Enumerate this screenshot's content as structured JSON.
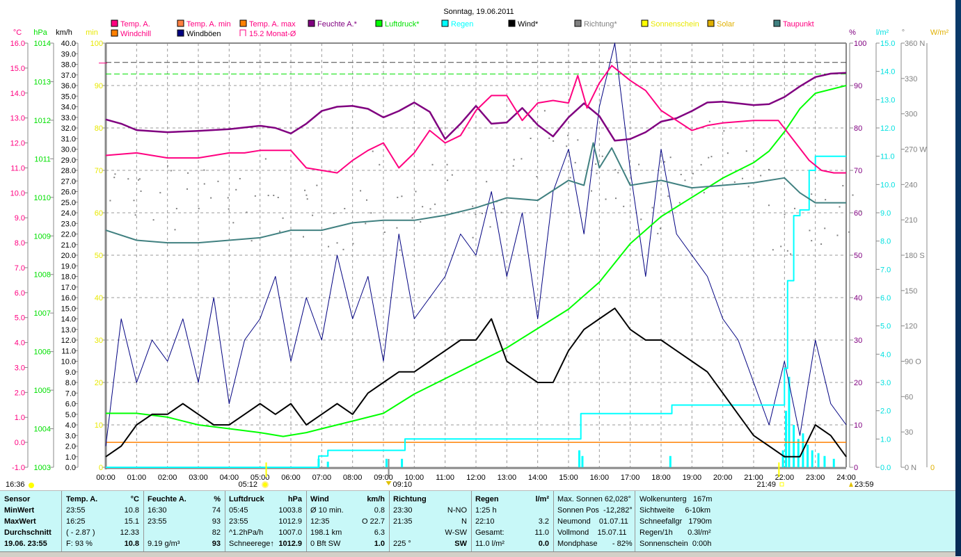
{
  "title": "Sonntag, 19.06.2011",
  "legend": [
    {
      "label": "Temp. A.",
      "color": "#ff0080",
      "text": "#ff0080",
      "box": "fill"
    },
    {
      "label": "Temp. A. min",
      "color": "#ff8040",
      "text": "#ff0080",
      "box": "fill"
    },
    {
      "label": "Temp. A. max",
      "color": "#ff8000",
      "text": "#ff0080",
      "box": "fill"
    },
    {
      "label": "Feuchte A.*",
      "color": "#800080",
      "text": "#800080",
      "box": "fill"
    },
    {
      "label": "Luftdruck*",
      "color": "#00ff00",
      "text": "#00e000",
      "box": "fill"
    },
    {
      "label": "Regen",
      "color": "#00ffff",
      "text": "#00ffff",
      "box": "fill"
    },
    {
      "label": "Wind*",
      "color": "#000000",
      "text": "#000000",
      "box": "fill"
    },
    {
      "label": "Richtung*",
      "color": "#808080",
      "text": "#808080",
      "box": "fill"
    },
    {
      "label": "Sonnenschein",
      "color": "#ffff00",
      "text": "#e8e800",
      "box": "fill"
    },
    {
      "label": "Solar",
      "color": "#e0b000",
      "text": "#e0b000",
      "box": "fill"
    },
    {
      "label": "Taupunkt",
      "color": "#408080",
      "text": "#ff0080",
      "box": "fill"
    },
    {
      "label": "Windchill",
      "color": "#ff8000",
      "text": "#ff0080",
      "box": "fill"
    },
    {
      "label": "Windböen",
      "color": "#000080",
      "text": "#000000",
      "box": "fill"
    },
    {
      "label": "15.2 Monat-Ø",
      "color": "#ff0080",
      "text": "#ff0080",
      "box": "open"
    }
  ],
  "chart_data": {
    "type": "line",
    "title": "Sonntag, 19.06.2011",
    "xlabel": "",
    "x_ticks": [
      "00:00",
      "01:00",
      "02:00",
      "03:00",
      "04:00",
      "05:00",
      "06:00",
      "07:00",
      "08:00",
      "09:00",
      "10:00",
      "11:00",
      "12:00",
      "13:00",
      "14:00",
      "15:00",
      "16:00",
      "17:00",
      "18:00",
      "19:00",
      "20:00",
      "21:00",
      "22:00",
      "23:00",
      "24:00"
    ],
    "xlim": [
      0,
      24
    ],
    "axes": {
      "temp": {
        "unit": "°C",
        "range": [
          -1,
          16
        ],
        "step": 1,
        "color": "#ff0080"
      },
      "pressure": {
        "unit": "hPa",
        "range": [
          1003,
          1014
        ],
        "step": 1,
        "color": "#00e000"
      },
      "wind": {
        "unit": "km/h",
        "range": [
          0,
          40
        ],
        "step": 1,
        "color": "#000000"
      },
      "sun_min": {
        "unit": "min",
        "range": [
          0,
          100
        ],
        "step": 10,
        "color": "#e8e800"
      },
      "humidity": {
        "unit": "%",
        "range": [
          0,
          100
        ],
        "step": 10,
        "color": "#800080"
      },
      "rain": {
        "unit": "l/m²",
        "range": [
          0,
          15
        ],
        "step": 1,
        "color": "#00e0e0"
      },
      "direction": {
        "unit": "°",
        "range": [
          0,
          360
        ],
        "step": 30,
        "color": "#808080",
        "labels": {
          "360": "N",
          "270": "W",
          "180": "S",
          "90": "O",
          "0": "N"
        }
      },
      "solar": {
        "unit": "W/m²",
        "range": [
          0,
          0
        ],
        "color": "#e0b000"
      }
    },
    "month_avg_temp": 15.2,
    "pressure_ref": 1013.2,
    "series": [
      {
        "name": "Temp. A.",
        "axis": "temp",
        "color": "#ff0080",
        "x": [
          0,
          1,
          2,
          3,
          3.5,
          4,
          4.5,
          5,
          5.5,
          6,
          6.5,
          7,
          7.5,
          8,
          8.5,
          9,
          9.5,
          10,
          10.5,
          11,
          11.5,
          12,
          12.5,
          13,
          13.5,
          14,
          14.5,
          15,
          15.3,
          15.6,
          16,
          16.4,
          17,
          17.5,
          18,
          18.5,
          19,
          19.5,
          20,
          21,
          21.8,
          22.3,
          22.8,
          23.2,
          23.6,
          24
        ],
        "y": [
          11.5,
          11.6,
          11.4,
          11.4,
          11.5,
          11.6,
          11.6,
          11.7,
          11.7,
          11.7,
          11.0,
          10.9,
          10.8,
          11.3,
          11.7,
          12.0,
          11.0,
          11.6,
          12.5,
          12.0,
          12.3,
          13.3,
          13.9,
          13.9,
          12.9,
          13.6,
          13.7,
          13.6,
          14.7,
          13.4,
          14.4,
          15.1,
          14.5,
          14.1,
          13.3,
          12.9,
          12.5,
          12.7,
          12.8,
          12.9,
          12.9,
          12.1,
          11.3,
          10.9,
          10.8,
          10.8
        ]
      },
      {
        "name": "Feuchte A.*",
        "axis": "humidity",
        "color": "#800080",
        "x": [
          0,
          0.5,
          1,
          2,
          3,
          4,
          5,
          5.5,
          6,
          6.5,
          7,
          7.5,
          8,
          8.5,
          9,
          9.5,
          10,
          10.5,
          11,
          11.5,
          12,
          12.5,
          13,
          13.5,
          14,
          14.5,
          15,
          15.5,
          16,
          16.5,
          17,
          17.5,
          18,
          18.5,
          19,
          19.5,
          20,
          21,
          21.5,
          22,
          22.5,
          23,
          23.5,
          24
        ],
        "y": [
          82,
          81,
          79.5,
          79,
          79.3,
          79.7,
          80.5,
          80,
          78.7,
          81,
          84,
          85,
          85.2,
          84.5,
          82.5,
          84,
          86,
          83.8,
          77.4,
          81,
          85.2,
          81,
          81.3,
          84.7,
          80.7,
          78,
          82.5,
          85.8,
          82.8,
          77,
          77.4,
          79,
          81.5,
          82.3,
          84,
          86,
          86.2,
          85.4,
          85.6,
          87.3,
          89.8,
          92,
          92.8,
          93
        ]
      },
      {
        "name": "Luftdruck*",
        "axis": "pressure",
        "color": "#00ff00",
        "x": [
          0,
          1,
          2,
          3,
          4,
          5,
          5.75,
          6.5,
          7,
          8,
          9,
          10,
          11,
          12,
          13,
          14,
          15,
          16,
          17,
          18,
          19,
          20,
          21,
          21.5,
          22,
          22.5,
          23,
          24
        ],
        "y": [
          1004.4,
          1004.4,
          1004.3,
          1004.1,
          1004.0,
          1003.9,
          1003.8,
          1003.9,
          1004.0,
          1004.2,
          1004.4,
          1004.9,
          1005.3,
          1005.7,
          1006.1,
          1006.6,
          1007.1,
          1007.8,
          1008.8,
          1009.5,
          1010.0,
          1010.5,
          1010.9,
          1011.2,
          1011.7,
          1012.3,
          1012.7,
          1012.9
        ]
      },
      {
        "name": "Taupunkt",
        "axis": "temp",
        "color": "#408080",
        "x": [
          0,
          1,
          2,
          3,
          4,
          5,
          6,
          7,
          8,
          9,
          10,
          11,
          12,
          13,
          14,
          15,
          15.5,
          15.8,
          16,
          16.4,
          17,
          18,
          19,
          20,
          21,
          22,
          22.5,
          23,
          24
        ],
        "y": [
          8.5,
          8.1,
          8.0,
          8.0,
          8.1,
          8.2,
          8.5,
          8.5,
          8.8,
          8.9,
          8.9,
          9.1,
          9.4,
          9.8,
          9.7,
          10.5,
          10.3,
          12.0,
          11.0,
          11.8,
          10.3,
          10.5,
          10.2,
          10.3,
          10.4,
          10.6,
          10.0,
          9.6,
          9.6
        ]
      },
      {
        "name": "Wind*",
        "axis": "wind",
        "color": "#000000",
        "x_step": 0.5,
        "y": [
          1,
          2,
          4,
          5,
          5,
          6,
          5,
          4,
          4,
          5,
          6,
          5,
          6,
          4,
          5,
          6,
          5,
          7,
          8,
          9,
          9,
          10,
          11,
          12,
          12,
          14,
          10,
          9,
          8,
          8,
          11,
          13,
          14,
          15,
          13,
          12,
          12,
          11,
          10,
          9,
          7,
          5,
          3,
          2,
          1,
          1,
          4,
          3,
          1
        ]
      },
      {
        "name": "Windböen",
        "axis": "wind",
        "color": "#000080",
        "x_step": 0.5,
        "y": [
          2,
          14,
          8,
          12,
          10,
          14,
          8,
          16,
          6,
          12,
          14,
          18,
          10,
          16,
          12,
          20,
          14,
          18,
          10,
          22,
          14,
          16,
          18,
          22,
          20,
          26,
          18,
          24,
          14,
          26,
          30,
          22,
          34,
          40,
          28,
          18,
          30,
          22,
          20,
          18,
          14,
          12,
          8,
          4,
          10,
          3,
          12,
          6,
          4
        ]
      },
      {
        "name": "Richtung*",
        "axis": "direction",
        "color": "#808080",
        "x_step": 0.5,
        "y": [
          250,
          240,
          235,
          230,
          225,
          240,
          250,
          245,
          230,
          220,
          235,
          215,
          210,
          225,
          205,
          215,
          230,
          245,
          220,
          210,
          235,
          240,
          250,
          225,
          230,
          245,
          260,
          270,
          280,
          265,
          250,
          235,
          255,
          240,
          230,
          215,
          240,
          250,
          260,
          270,
          265,
          255,
          230,
          210,
          195,
          215,
          200,
          220,
          225
        ]
      },
      {
        "name": "Regen",
        "axis": "rain",
        "color": "#00ffff",
        "x": [
          0,
          6.7,
          6.9,
          7.2,
          9.1,
          9.7,
          15.3,
          15.4,
          18.3,
          18.35,
          21.9,
          22.0,
          22.1,
          22.3,
          22.5,
          22.8,
          23.0,
          24
        ],
        "y": [
          0,
          0,
          0.4,
          0.6,
          0.6,
          1.0,
          1.0,
          1.9,
          1.9,
          2.2,
          2.2,
          3.5,
          6.6,
          8.9,
          9.1,
          10.5,
          11.0,
          11.0
        ]
      },
      {
        "name": "Regen Intervall",
        "axis": "rain",
        "color": "#00ffff",
        "x": [
          6.9,
          7.2,
          9.1,
          9.6,
          15.35,
          15.45,
          18.3,
          21.95,
          22.05,
          22.15,
          22.3,
          22.45,
          22.6,
          22.75,
          22.9,
          23.1,
          23.3,
          23.6
        ],
        "y": [
          0.3,
          0.2,
          0.3,
          0.3,
          0.6,
          0.4,
          0.4,
          0.6,
          2.0,
          3.2,
          1.5,
          1.0,
          1.2,
          0.8,
          0.6,
          0.5,
          0.4,
          0.3
        ]
      },
      {
        "name": "Windchill",
        "axis": "temp",
        "color": "#ff8000",
        "x": [
          0,
          24
        ],
        "y": [
          0,
          0
        ]
      }
    ],
    "sun_markers": {
      "sunrise": "05:12",
      "sunset": "21:49",
      "moonrise": "16:36",
      "moonset": "09:10",
      "end": "23:59"
    }
  },
  "table": {
    "sensor": {
      "h": "Sensor",
      "r": [
        "MinWert",
        "MaxWert",
        "Durchschnitt",
        "19.06. 23:55"
      ]
    },
    "temp": {
      "h": "Temp. A.",
      "u": "°C",
      "a": [
        "23:55",
        "16:25",
        "( - 2.87 )",
        "F: 93 %"
      ],
      "b": [
        "10.8",
        "15.1",
        "12.33",
        "10.8"
      ]
    },
    "hum": {
      "h": "Feuchte A.",
      "u": "%",
      "a": [
        "16:30",
        "23:55",
        "",
        "9.19 g/m³"
      ],
      "b": [
        "74",
        "93",
        "82",
        "93"
      ]
    },
    "press": {
      "h": "Luftdruck",
      "u": "hPa",
      "a": [
        "05:45",
        "23:55",
        "^1.2hPa/h",
        "Schneerege↑"
      ],
      "b": [
        "1003.8",
        "1012.9",
        "1007.0",
        "1012.9"
      ]
    },
    "wind": {
      "h": "Wind",
      "u": "km/h",
      "a": [
        "Ø 10 min.",
        "12:35",
        "198.1 km",
        "0 Bft SW"
      ],
      "b": [
        "0.8",
        "O 22.7",
        "6.3",
        "1.0"
      ]
    },
    "dir": {
      "h": "Richtung",
      "u": "",
      "a": [
        "23:30",
        "21:35",
        "",
        "225 °"
      ],
      "b": [
        "N-NO",
        "N",
        "W-SW",
        "SW"
      ]
    },
    "rain": {
      "h": "Regen",
      "u": "l/m²",
      "a": [
        "1:25 h",
        "22:10",
        "Gesamt:",
        "11.0 l/m²"
      ],
      "b": [
        "",
        "3.2",
        "11.0",
        "0.0"
      ]
    },
    "sun": {
      "r": [
        "Max. Sonnen 62,028°",
        "Sonnen Pos  -12,282°",
        "Neumond    01.07.11",
        "Vollmond    15.07.11",
        "Mondphase       - 82%"
      ]
    },
    "cloud": {
      "r": [
        "Wolkenunterg   167m",
        "Sichtweite     6-10km",
        "Schneefallgr   1790m",
        "Regen/1h       0.3l/m²",
        "Sonnenschein  0:00h"
      ]
    }
  }
}
